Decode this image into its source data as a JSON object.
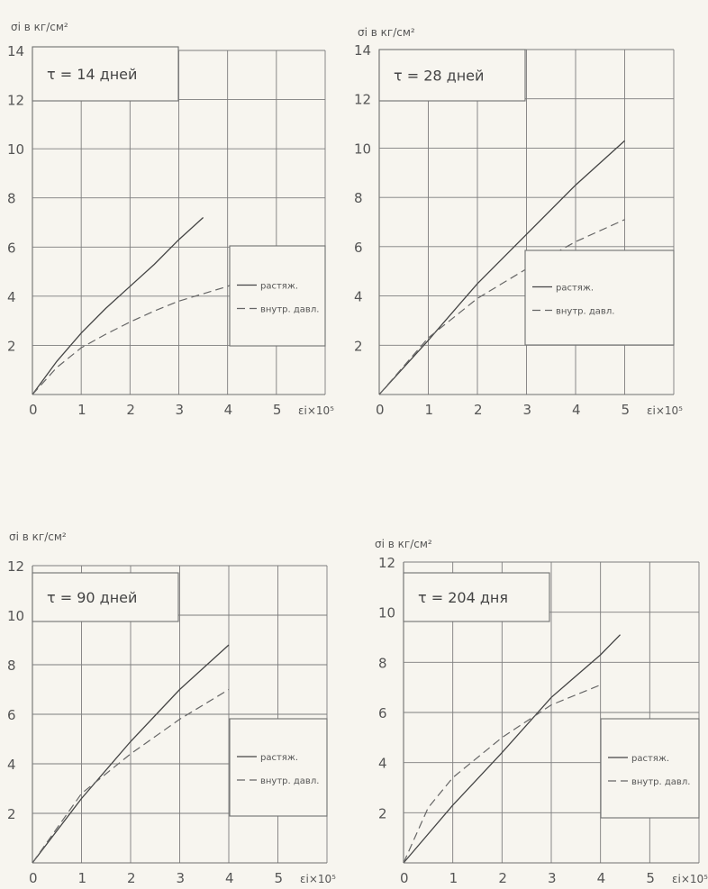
{
  "chart_data": [
    {
      "type": "line",
      "title": "τ = 14 дней",
      "ylabel": "σi в кг/см²",
      "xlabel": "εi×10⁵",
      "xlim": [
        0,
        6
      ],
      "ylim": [
        0,
        14
      ],
      "x_ticks": [
        "0",
        "1",
        "2",
        "3",
        "4",
        "5"
      ],
      "y_ticks": [
        "2",
        "4",
        "6",
        "8",
        "10",
        "12",
        "14"
      ],
      "grid": true,
      "legend_position": "right-middle",
      "series": [
        {
          "name": "растяж.",
          "style": "solid",
          "x": [
            0,
            0.5,
            1,
            1.5,
            2,
            2.5,
            3,
            3.5
          ],
          "y": [
            0,
            1.35,
            2.5,
            3.5,
            4.4,
            5.3,
            6.3,
            7.2
          ]
        },
        {
          "name": "внутр. давл.",
          "style": "dashed",
          "x": [
            0,
            0.5,
            1,
            1.5,
            2,
            2.5,
            3,
            3.5,
            4,
            4.2
          ],
          "y": [
            0,
            1.1,
            1.9,
            2.45,
            2.95,
            3.4,
            3.8,
            4.1,
            4.4,
            4.6
          ]
        }
      ]
    },
    {
      "type": "line",
      "title": "τ = 28 дней",
      "ylabel": "σi в кг/см²",
      "xlabel": "εi×10⁵",
      "xlim": [
        0,
        6
      ],
      "ylim": [
        0,
        14
      ],
      "x_ticks": [
        "0",
        "1",
        "2",
        "3",
        "4",
        "5"
      ],
      "y_ticks": [
        "2",
        "4",
        "6",
        "8",
        "10",
        "12",
        "14"
      ],
      "grid": true,
      "legend_position": "right-middle",
      "series": [
        {
          "name": "растяж.",
          "style": "solid",
          "x": [
            0,
            1,
            2,
            3,
            4,
            5
          ],
          "y": [
            0,
            2.2,
            4.5,
            6.5,
            8.5,
            10.3
          ]
        },
        {
          "name": "внутр. давл.",
          "style": "dashed",
          "x": [
            0,
            1,
            2,
            3,
            4,
            5
          ],
          "y": [
            0,
            2.3,
            3.9,
            5.1,
            6.2,
            7.1
          ]
        }
      ]
    },
    {
      "type": "line",
      "title": "τ = 90 дней",
      "ylabel": "σi в кг/см²",
      "xlabel": "εi×10⁵",
      "xlim": [
        0,
        6
      ],
      "ylim": [
        0,
        12
      ],
      "x_ticks": [
        "0",
        "1",
        "2",
        "3",
        "4",
        "5"
      ],
      "y_ticks": [
        "2",
        "4",
        "6",
        "8",
        "10",
        "12"
      ],
      "grid": true,
      "legend_position": "right-middle",
      "series": [
        {
          "name": "растяж.",
          "style": "solid",
          "x": [
            0,
            1,
            2,
            3,
            4
          ],
          "y": [
            0,
            2.6,
            4.9,
            7.0,
            8.8
          ]
        },
        {
          "name": "внутр. давл.",
          "style": "dashed",
          "x": [
            0,
            1,
            2,
            3,
            4
          ],
          "y": [
            0,
            2.8,
            4.4,
            5.8,
            7.0
          ]
        }
      ]
    },
    {
      "type": "line",
      "title": "τ = 204 дня",
      "ylabel": "σi в кг/см²",
      "xlabel": "εi×10⁵",
      "xlim": [
        0,
        6
      ],
      "ylim": [
        0,
        12
      ],
      "x_ticks": [
        "0",
        "1",
        "2",
        "3",
        "4",
        "5"
      ],
      "y_ticks": [
        "2",
        "4",
        "6",
        "8",
        "10",
        "12"
      ],
      "grid": true,
      "legend_position": "right-middle",
      "series": [
        {
          "name": "растяж.",
          "style": "solid",
          "x": [
            0,
            1,
            2,
            3,
            4,
            4.4
          ],
          "y": [
            0,
            2.3,
            4.4,
            6.6,
            8.3,
            9.1
          ]
        },
        {
          "name": "внутр. давл.",
          "style": "dashed",
          "x": [
            0,
            0.5,
            1,
            2,
            3,
            4
          ],
          "y": [
            0,
            2.2,
            3.4,
            5.0,
            6.3,
            7.1
          ]
        }
      ]
    }
  ],
  "labels": {
    "ylabel": "σi в кг/см²",
    "xlabel": "εi×10⁵",
    "legend_solid": "растяж.",
    "legend_dashed": "внутр. давл."
  }
}
